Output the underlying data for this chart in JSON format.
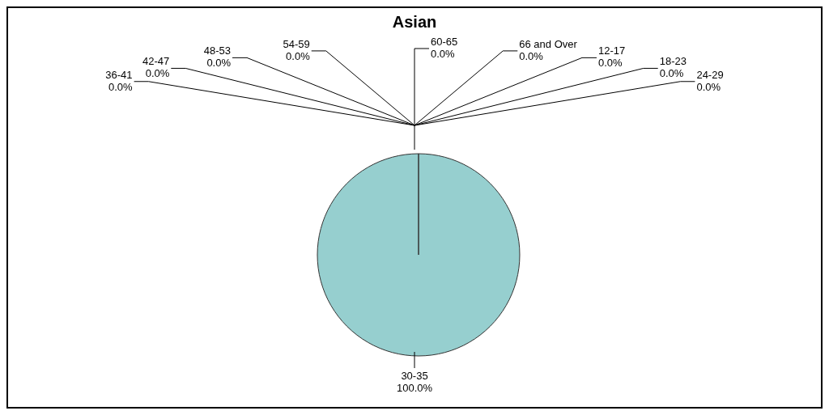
{
  "chart_data": {
    "type": "pie",
    "title": "Asian",
    "categories": [
      "12-17",
      "18-23",
      "24-29",
      "30-35",
      "36-41",
      "42-47",
      "48-53",
      "54-59",
      "60-65",
      "66 and Over"
    ],
    "values": [
      0,
      0,
      0,
      100,
      0,
      0,
      0,
      0,
      0,
      0
    ],
    "value_labels": [
      "0.0%",
      "0.0%",
      "0.0%",
      "100.0%",
      "0.0%",
      "0.0%",
      "0.0%",
      "0.0%",
      "0.0%",
      "0.0%"
    ],
    "colors": [
      "#96cfcf",
      "#96cfcf",
      "#96cfcf",
      "#96cfcf",
      "#96cfcf",
      "#96cfcf",
      "#96cfcf",
      "#96cfcf",
      "#96cfcf",
      "#96cfcf"
    ]
  }
}
